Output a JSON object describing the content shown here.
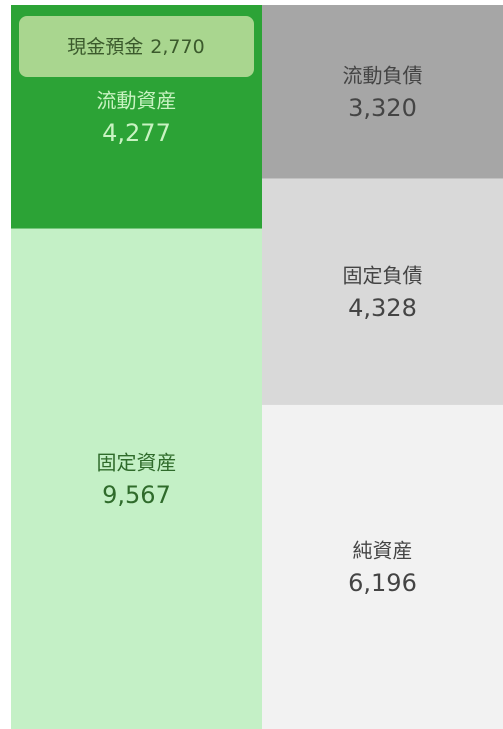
{
  "chart_data": {
    "type": "balance",
    "assets": {
      "categories": [
        "流動資産",
        "固定資産"
      ],
      "values": [
        4277,
        9567
      ],
      "value_labels": [
        "4,277",
        "9,567"
      ],
      "colors": [
        "#2ca336",
        "#c4f0c6"
      ],
      "text_colors": [
        "#c9f3c2",
        "#2f6b2b"
      ]
    },
    "liabilities": {
      "categories": [
        "流動負債",
        "固定負債",
        "純資産"
      ],
      "values": [
        3320,
        4328,
        6196
      ],
      "value_labels": [
        "3,320",
        "4,328",
        "6,196"
      ],
      "colors": [
        "#a6a6a6",
        "#d9d9d9",
        "#f2f2f2"
      ],
      "text_colors": [
        "#444444",
        "#444444",
        "#444444"
      ]
    },
    "cash": {
      "name": "現金預金",
      "value": 2770,
      "value_label": "2,770",
      "color": "#a9d68f",
      "text_color": "#3b5a2c"
    }
  }
}
